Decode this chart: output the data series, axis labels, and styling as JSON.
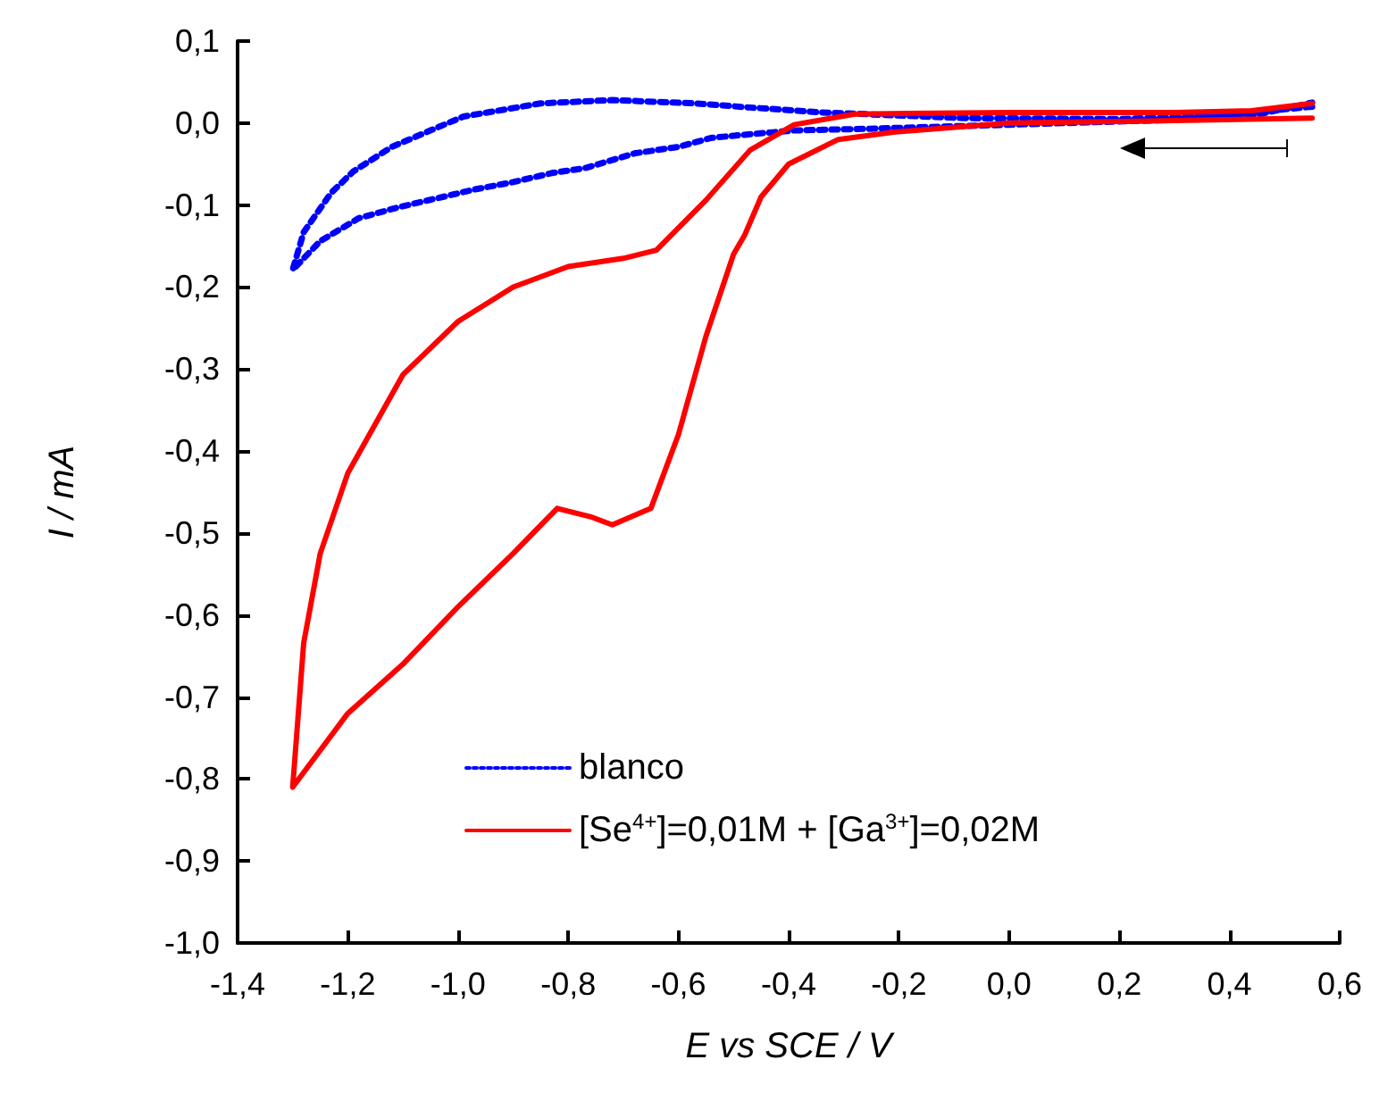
{
  "chart_data": {
    "type": "line",
    "xlabel": "E vs SCE / V",
    "ylabel": "I / mA",
    "xlim": [
      -1.4,
      0.6
    ],
    "xticks": [
      {
        "value": -1.4,
        "label": "-1,4"
      },
      {
        "value": -1.2,
        "label": "-1,2"
      },
      {
        "value": -1.0,
        "label": "-1,0"
      },
      {
        "value": -0.8,
        "label": "-0,8"
      },
      {
        "value": -0.6,
        "label": "-0,6"
      },
      {
        "value": -0.4,
        "label": "-0,4"
      },
      {
        "value": -0.2,
        "label": "-0,2"
      },
      {
        "value": 0.0,
        "label": "0,0"
      },
      {
        "value": 0.2,
        "label": "0,2"
      },
      {
        "value": 0.4,
        "label": "0,4"
      },
      {
        "value": 0.6,
        "label": "0,6"
      }
    ],
    "ylim": [
      -1.0,
      0.1
    ],
    "yticks": [
      {
        "value": -1.0,
        "label": "-1,0"
      },
      {
        "value": -0.9,
        "label": "-0,9"
      },
      {
        "value": -0.8,
        "label": "-0,8"
      },
      {
        "value": -0.7,
        "label": "-0,7"
      },
      {
        "value": -0.6,
        "label": "-0,6"
      },
      {
        "value": -0.5,
        "label": "-0,5"
      },
      {
        "value": -0.4,
        "label": "-0,4"
      },
      {
        "value": -0.3,
        "label": "-0,3"
      },
      {
        "value": -0.2,
        "label": "-0,2"
      },
      {
        "value": -0.1,
        "label": "-0,1"
      },
      {
        "value": 0.0,
        "label": "0,0"
      },
      {
        "value": 0.1,
        "label": "0,1"
      }
    ],
    "grid": false,
    "legend": "bottom",
    "marker": "none",
    "series": [
      {
        "name": "blanco",
        "color": "#0000ff",
        "line_style": "dotted",
        "x": [
          0.55,
          0.3,
          0.0,
          -0.26,
          -0.39,
          -0.46,
          -0.54,
          -0.6,
          -0.68,
          -0.77,
          -0.83,
          -0.9,
          -0.97,
          -1.04,
          -1.11,
          -1.18,
          -1.25,
          -1.3,
          -1.28,
          -1.23,
          -1.19,
          -1.12,
          -1.05,
          -0.99,
          -0.85,
          -0.72,
          -0.57,
          -0.47,
          -0.34,
          -0.08,
          0.2,
          0.45,
          0.55
        ],
        "values": [
          0.02,
          0.004,
          -0.002,
          -0.007,
          -0.009,
          -0.013,
          -0.018,
          -0.029,
          -0.037,
          -0.055,
          -0.061,
          -0.072,
          -0.081,
          -0.092,
          -0.103,
          -0.116,
          -0.144,
          -0.179,
          -0.133,
          -0.085,
          -0.059,
          -0.029,
          -0.009,
          0.008,
          0.024,
          0.028,
          0.024,
          0.019,
          0.013,
          0.006,
          0.005,
          0.01,
          0.025
        ]
      },
      {
        "name": "[Se$^{4+}$]=0,01M + [Ga$^{3+}$]=0,02M",
        "color": "#ff0000",
        "line_style": "solid",
        "x": [
          0.55,
          0.3,
          0.0,
          -0.21,
          -0.31,
          -0.4,
          -0.45,
          -0.48,
          -0.5,
          -0.55,
          -0.6,
          -0.65,
          -0.72,
          -0.76,
          -0.82,
          -0.9,
          -1.0,
          -1.1,
          -1.2,
          -1.25,
          -1.3,
          -1.28,
          -1.25,
          -1.2,
          -1.1,
          -1.0,
          -0.9,
          -0.8,
          -0.7,
          -0.64,
          -0.55,
          -0.47,
          -0.39,
          -0.28,
          0.0,
          0.3,
          0.44,
          0.55
        ],
        "values": [
          0.006,
          0.003,
          0.0,
          -0.011,
          -0.02,
          -0.05,
          -0.09,
          -0.137,
          -0.16,
          -0.26,
          -0.38,
          -0.47,
          -0.49,
          -0.48,
          -0.47,
          -0.525,
          -0.59,
          -0.66,
          -0.72,
          -0.765,
          -0.81,
          -0.634,
          -0.525,
          -0.427,
          -0.307,
          -0.242,
          -0.2,
          -0.175,
          -0.165,
          -0.155,
          -0.094,
          -0.033,
          -0.002,
          0.011,
          0.013,
          0.013,
          0.015,
          0.024
        ]
      }
    ]
  }
}
